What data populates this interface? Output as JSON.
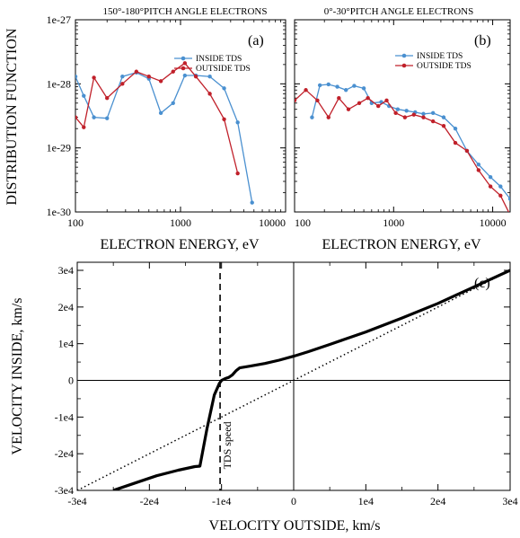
{
  "chart_data": [
    {
      "id": "a",
      "type": "line",
      "title": "150°-180°PITCH ANGLE ELECTRONS",
      "panel_label": "(a)",
      "xlabel": "ELECTRON ENERGY, eV",
      "ylabel": "DISTRIBUTION FUNCTION",
      "x_scale": "log",
      "y_scale": "log",
      "xlim": [
        100,
        10000
      ],
      "ylim": [
        1e-30,
        1e-27
      ],
      "xticks": [
        100,
        1000,
        10000
      ],
      "xtick_labels": [
        "100",
        "1000",
        "10000"
      ],
      "yticks": [
        1e-30,
        1e-29,
        1e-28,
        1e-27
      ],
      "ytick_labels": [
        "1e-30",
        "1e-29",
        "1e-28",
        "1e-27"
      ],
      "legend_position": "top-right",
      "series": [
        {
          "name": "INSIDE TDS",
          "color": "#4a90d0",
          "x": [
            100,
            120,
            150,
            200,
            280,
            380,
            500,
            650,
            850,
            1100,
            1400,
            1900,
            2600,
            3500,
            4800
          ],
          "y": [
            1.3e-28,
            6.5e-29,
            3e-29,
            2.9e-29,
            1.3e-28,
            1.5e-28,
            1.2e-28,
            3.5e-29,
            5e-29,
            1.35e-28,
            1.35e-28,
            1.3e-28,
            8.5e-29,
            2.5e-29,
            1.4e-30
          ]
        },
        {
          "name": "OUTSIDE TDS",
          "color": "#c0202a",
          "x": [
            100,
            120,
            150,
            200,
            280,
            380,
            500,
            650,
            850,
            1100,
            1400,
            1900,
            2600,
            3500
          ],
          "y": [
            3e-29,
            2.1e-29,
            1.25e-28,
            6e-29,
            1e-28,
            1.55e-28,
            1.3e-28,
            1.1e-28,
            1.55e-28,
            2.1e-28,
            1.3e-28,
            7e-29,
            2.8e-29,
            4e-30
          ]
        }
      ]
    },
    {
      "id": "b",
      "type": "line",
      "title": "0°-30°PITCH ANGLE ELECTRONS",
      "panel_label": "(b)",
      "xlabel": "ELECTRON ENERGY, eV",
      "x_scale": "log",
      "y_scale": "log",
      "xlim": [
        100,
        15000
      ],
      "ylim": [
        1e-30,
        1e-27
      ],
      "xticks": [
        100,
        1000,
        10000
      ],
      "xtick_labels": [
        "100",
        "1000",
        "10000"
      ],
      "legend_position": "top-right",
      "series": [
        {
          "name": "INSIDE TDS",
          "color": "#4a90d0",
          "x": [
            150,
            180,
            220,
            270,
            330,
            400,
            500,
            600,
            750,
            900,
            1100,
            1350,
            1650,
            2000,
            2500,
            3200,
            4200,
            5500,
            7200,
            9500,
            12000,
            15000
          ],
          "y": [
            3e-29,
            9.5e-29,
            9.8e-29,
            9e-29,
            8e-29,
            9.3e-29,
            8.5e-29,
            5e-29,
            5.2e-29,
            4.5e-29,
            4e-29,
            3.8e-29,
            3.6e-29,
            3.4e-29,
            3.5e-29,
            3e-29,
            2e-29,
            9e-30,
            5.5e-30,
            3.5e-30,
            2.5e-30,
            1.6e-30
          ]
        },
        {
          "name": "OUTSIDE TDS",
          "color": "#c0202a",
          "x": [
            100,
            130,
            170,
            220,
            280,
            350,
            450,
            550,
            700,
            850,
            1050,
            1300,
            1600,
            2000,
            2500,
            3200,
            4200,
            5500,
            7200,
            9500,
            12000,
            15000
          ],
          "y": [
            5.5e-29,
            8e-29,
            5.5e-29,
            3e-29,
            6e-29,
            4e-29,
            5e-29,
            6e-29,
            4.5e-29,
            5.5e-29,
            3.5e-29,
            3e-29,
            3.3e-29,
            3e-29,
            2.6e-29,
            2.2e-29,
            1.2e-29,
            9e-30,
            4.5e-30,
            2.5e-30,
            1.8e-30,
            9e-31
          ]
        }
      ]
    },
    {
      "id": "c",
      "type": "line",
      "panel_label": "(c)",
      "xlabel": "VELOCITY OUTSIDE, km/s",
      "ylabel": "VELOCITY INSIDE, km/s",
      "xlim": [
        -30000,
        30000
      ],
      "ylim": [
        -30000,
        32000
      ],
      "xticks": [
        -30000,
        -20000,
        -10000,
        0,
        10000,
        20000,
        30000
      ],
      "xtick_labels": [
        "-3e4",
        "-2e4",
        "-1e4",
        "0",
        "1e4",
        "2e4",
        "3e4"
      ],
      "yticks": [
        -30000,
        -20000,
        -10000,
        0,
        10000,
        20000,
        30000
      ],
      "ytick_labels": [
        "-3e4",
        "-2e4",
        "-1e4",
        "0",
        "1e4",
        "2e4",
        "3e4"
      ],
      "tds_speed_x": -10200,
      "tds_speed_label": "TDS speed",
      "series": [
        {
          "style": "thick-solid",
          "color": "#000000",
          "x": [
            -25000,
            -22000,
            -19000,
            -16000,
            -13700,
            -13000,
            -12000,
            -11000,
            -10300,
            -10000,
            -9500,
            -9000,
            -8500,
            -8000,
            -7500,
            -6000,
            -4000,
            -2000,
            0,
            2000,
            5000,
            10000,
            15000,
            20000,
            25000,
            30000
          ],
          "y": [
            -30000,
            -28000,
            -26000,
            -24500,
            -23500,
            -23400,
            -13000,
            -4000,
            -800,
            0,
            500,
            800,
            1500,
            2600,
            3400,
            3900,
            4600,
            5500,
            6600,
            7800,
            9800,
            13200,
            17000,
            21000,
            25500,
            30000
          ]
        },
        {
          "style": "dotted",
          "color": "#000000",
          "x": [
            -30000,
            30000
          ],
          "y": [
            -30000,
            30000
          ]
        }
      ]
    }
  ]
}
